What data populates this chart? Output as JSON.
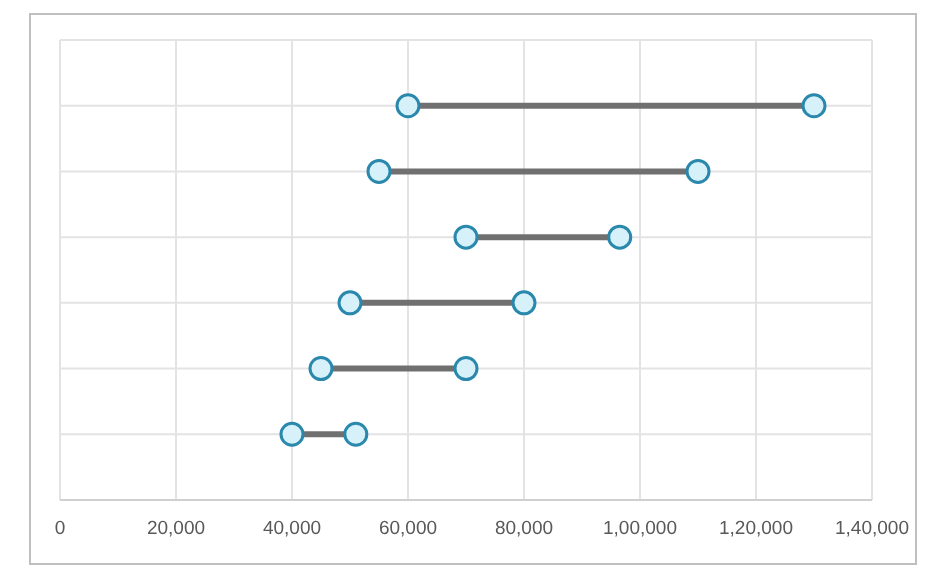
{
  "chart_data": {
    "type": "scatter",
    "orientation": "horizontal",
    "categories": [
      null,
      null,
      null,
      null,
      null,
      null
    ],
    "series": [
      {
        "color": "#2a88ad",
        "values": [
          60000,
          55000,
          70000,
          50000,
          45000,
          40000
        ]
      },
      {
        "color": "#2a88ad",
        "values": [
          130000,
          110000,
          96500,
          80000,
          70000,
          51000
        ]
      }
    ],
    "xlim": [
      0,
      140000
    ],
    "xticks": [
      0,
      {
        "value": 20000,
        "label": "20,000"
      },
      {
        "value": 40000,
        "label": "40,000"
      },
      {
        "value": 60000,
        "label": "60,000"
      },
      {
        "value": 80000,
        "label": "80,000"
      },
      {
        "value": 100000,
        "label": "1,00,000"
      },
      {
        "value": 120000,
        "label": "1,20,000"
      },
      {
        "value": 140000,
        "label": "1,40,000"
      }
    ],
    "grid": true,
    "marker": "circle",
    "tick_labels": "x"
  }
}
